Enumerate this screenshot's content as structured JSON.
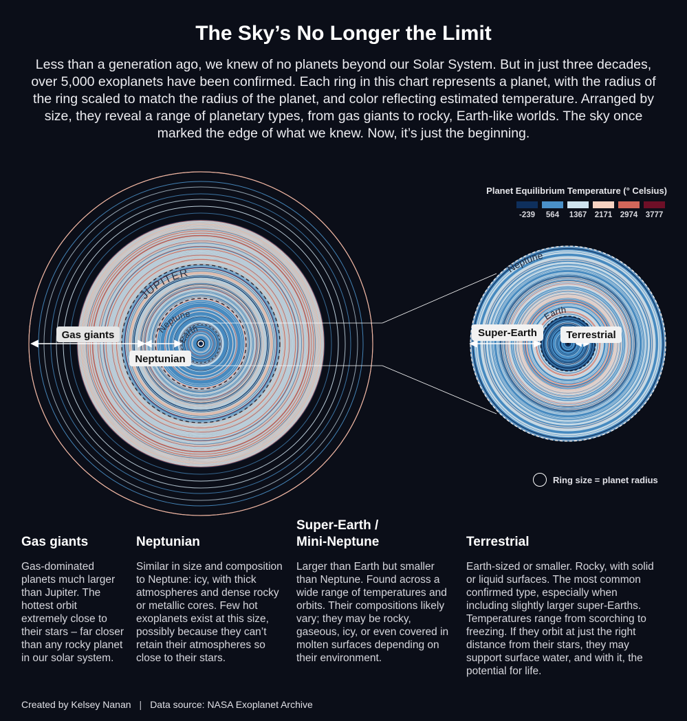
{
  "title": "The Sky’s No Longer the Limit",
  "intro": "Less than a generation ago, we knew of no planets beyond our Solar System. But in just three decades, over 5,000 exoplanets have been confirmed. Each ring in this chart represents a planet, with the radius of the ring scaled to match the radius of the planet, and color reflecting estimated temperature. Arranged by size, they reveal a range of planetary types, from gas giants to rocky, Earth-like worlds. The sky once marked the edge of what we knew. Now, it’s just the beginning.",
  "legend": {
    "title": "Planet Equilibrium Temperature (° Celsius)",
    "items": [
      {
        "label": "-239",
        "color": "#0e2f5c"
      },
      {
        "label": "564",
        "color": "#4a90c8"
      },
      {
        "label": "1367",
        "color": "#cfe3ef"
      },
      {
        "label": "2171",
        "color": "#f7d2c2"
      },
      {
        "label": "2974",
        "color": "#d2675a"
      },
      {
        "label": "3777",
        "color": "#6d0f27"
      }
    ]
  },
  "diagram": {
    "reference_rings": {
      "jupiter": "JUPITER",
      "neptune": "Neptune",
      "earth": "Earth"
    },
    "category_tags": {
      "gas_giants": "Gas giants",
      "neptunian": "Neptunian",
      "super_earth": "Super-Earth",
      "terrestrial": "Terrestrial"
    },
    "size_key": "Ring size = planet radius"
  },
  "categories": [
    {
      "heading": "Gas giants",
      "text": "Gas-dominated planets much larger than Jupiter. The hottest orbit extremely close to their stars – far closer than any rocky planet in our solar system."
    },
    {
      "heading": "Neptunian",
      "text": "Similar in size and composition to Neptune: icy, with thick atmospheres and dense rocky or metallic cores. Few hot exoplanets exist at this size, possibly because they can’t retain their atmospheres so close to their stars."
    },
    {
      "heading": "Super-Earth / Mini-Neptune",
      "text": "Larger than Earth but smaller than Neptune. Found across a wide range of temperatures and orbits. Their compositions likely vary; they may be rocky, gaseous, icy, or even covered in molten surfaces depending on their environment."
    },
    {
      "heading": "Terrestrial",
      "text": "Earth-sized or smaller. Rocky, with solid or liquid surfaces. The most common confirmed type, especially when including slightly larger super-Earths. Temperatures range from scorching to freezing. If they orbit at just the right distance from their stars, they may support surface water, and with it, the potential for life."
    }
  ],
  "footer": {
    "credit": "Created by Kelsey Nanan",
    "source": "Data source: NASA Exoplanet Archive"
  }
}
